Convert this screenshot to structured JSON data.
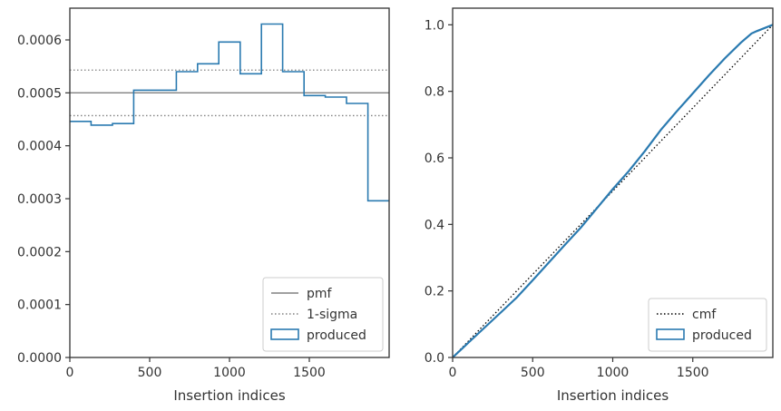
{
  "chart_data": [
    {
      "type": "step",
      "xlabel": "Insertion indices",
      "ylabel": "",
      "xlim": [
        0,
        2000
      ],
      "ylim": [
        0,
        0.00066
      ],
      "x_ticks": [
        0,
        500,
        1000,
        1500
      ],
      "x_tick_labels": [
        "0",
        "500",
        "1000",
        "1500"
      ],
      "y_ticks": [
        0,
        0.0001,
        0.0002,
        0.0003,
        0.0004,
        0.0005,
        0.0006
      ],
      "y_tick_labels": [
        "0.0000",
        "0.0001",
        "0.0002",
        "0.0003",
        "0.0004",
        "0.0005",
        "0.0006"
      ],
      "grid": false,
      "legend_position": "lower right",
      "reference_lines": [
        {
          "name": "pmf",
          "y": 0.0005,
          "style": "solid",
          "color": "#808080"
        },
        {
          "name": "1-sigma",
          "y": 0.000543,
          "style": "dotted",
          "color": "#808080"
        },
        {
          "name": "1-sigma",
          "y": 0.000457,
          "style": "dotted",
          "color": "#808080"
        }
      ],
      "series": [
        {
          "name": "produced",
          "color": "#2a7ab0",
          "bin_edges": [
            0,
            133,
            267,
            400,
            533,
            667,
            800,
            933,
            1067,
            1200,
            1333,
            1467,
            1600,
            1733,
            1867,
            2000
          ],
          "values": [
            0.000446,
            0.000439,
            0.000442,
            0.000505,
            0.000505,
            0.00054,
            0.000555,
            0.000596,
            0.000536,
            0.00063,
            0.00054,
            0.000495,
            0.000492,
            0.00048,
            0.000296
          ]
        }
      ],
      "legend": [
        {
          "label": "pmf",
          "kind": "line",
          "style": "solid",
          "color": "#808080"
        },
        {
          "label": "1-sigma",
          "kind": "line",
          "style": "dotted",
          "color": "#808080"
        },
        {
          "label": "produced",
          "kind": "patch",
          "color": "#2a7ab0"
        }
      ]
    },
    {
      "type": "line",
      "xlabel": "Insertion indices",
      "ylabel": "",
      "xlim": [
        0,
        2000
      ],
      "ylim": [
        0,
        1.05
      ],
      "x_ticks": [
        0,
        500,
        1000,
        1500
      ],
      "x_tick_labels": [
        "0",
        "500",
        "1000",
        "1500"
      ],
      "y_ticks": [
        0,
        0.2,
        0.4,
        0.6,
        0.8,
        1.0
      ],
      "y_tick_labels": [
        "0.0",
        "0.2",
        "0.4",
        "0.6",
        "0.8",
        "1.0"
      ],
      "grid": false,
      "legend_position": "lower right",
      "series": [
        {
          "name": "cmf",
          "style": "dotted",
          "color": "#000000",
          "x": [
            0,
            2000
          ],
          "y": [
            0,
            1.0
          ]
        },
        {
          "name": "produced",
          "style": "solid",
          "color": "#2a7ab0",
          "x": [
            0,
            100,
            200,
            300,
            400,
            500,
            600,
            700,
            800,
            900,
            1000,
            1100,
            1200,
            1300,
            1400,
            1500,
            1600,
            1700,
            1800,
            1867,
            1900,
            2000
          ],
          "y": [
            0,
            0.045,
            0.09,
            0.135,
            0.18,
            0.232,
            0.285,
            0.338,
            0.39,
            0.448,
            0.506,
            0.56,
            0.62,
            0.684,
            0.74,
            0.794,
            0.848,
            0.899,
            0.946,
            0.974,
            0.981,
            1.0
          ]
        }
      ],
      "legend": [
        {
          "label": "cmf",
          "kind": "line",
          "style": "dotted",
          "color": "#000000"
        },
        {
          "label": "produced",
          "kind": "patch",
          "color": "#2a7ab0"
        }
      ]
    }
  ]
}
